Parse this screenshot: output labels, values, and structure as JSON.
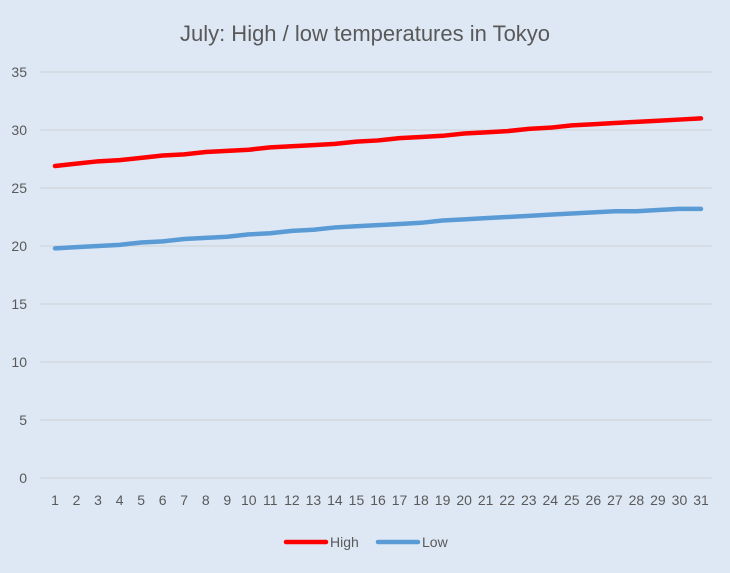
{
  "chart_data": {
    "type": "line",
    "title": "July: High / low temperatures in Tokyo",
    "xlabel": "",
    "ylabel": "",
    "x": [
      1,
      2,
      3,
      4,
      5,
      6,
      7,
      8,
      9,
      10,
      11,
      12,
      13,
      14,
      15,
      16,
      17,
      18,
      19,
      20,
      21,
      22,
      23,
      24,
      25,
      26,
      27,
      28,
      29,
      30,
      31
    ],
    "ylim": [
      0,
      35
    ],
    "yticks": [
      0,
      5,
      10,
      15,
      20,
      25,
      30,
      35
    ],
    "grid": true,
    "legend": "bottom",
    "series": [
      {
        "name": "High",
        "color": "#ff0000",
        "values": [
          26.9,
          27.1,
          27.3,
          27.4,
          27.6,
          27.8,
          27.9,
          28.1,
          28.2,
          28.3,
          28.5,
          28.6,
          28.7,
          28.8,
          29.0,
          29.1,
          29.3,
          29.4,
          29.5,
          29.7,
          29.8,
          29.9,
          30.1,
          30.2,
          30.4,
          30.5,
          30.6,
          30.7,
          30.8,
          30.9,
          31.0
        ]
      },
      {
        "name": "Low",
        "color": "#5b9bd5",
        "values": [
          19.8,
          19.9,
          20.0,
          20.1,
          20.3,
          20.4,
          20.6,
          20.7,
          20.8,
          21.0,
          21.1,
          21.3,
          21.4,
          21.6,
          21.7,
          21.8,
          21.9,
          22.0,
          22.2,
          22.3,
          22.4,
          22.5,
          22.6,
          22.7,
          22.8,
          22.9,
          23.0,
          23.0,
          23.1,
          23.2,
          23.2
        ]
      }
    ]
  }
}
